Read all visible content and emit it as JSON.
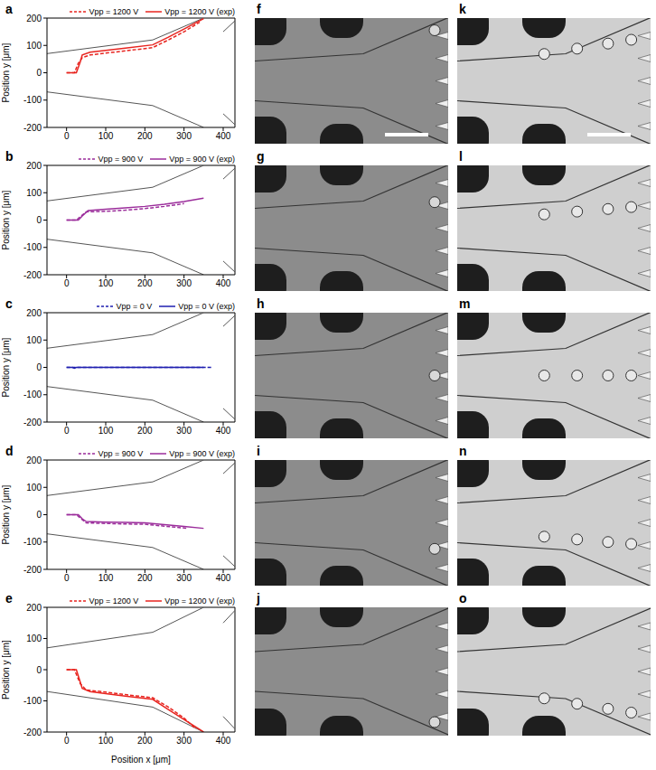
{
  "chart_data": [
    {
      "type": "line",
      "panel": "a",
      "y_label": "Position y [μm]",
      "xlim": [
        -50,
        430
      ],
      "xticks": [
        0,
        100,
        200,
        300,
        400
      ],
      "ylim": [
        -200,
        200
      ],
      "yticks": [
        -200,
        -100,
        0,
        100,
        200
      ],
      "legend": "top",
      "series": [
        {
          "name": "Vpp = 1200 V",
          "color": "#e8241f",
          "line_style": "dashed",
          "x": [
            0,
            20,
            30,
            40,
            60,
            100,
            150,
            220,
            260,
            300,
            340
          ],
          "values": [
            0,
            0,
            35,
            55,
            65,
            72,
            80,
            92,
            120,
            150,
            185
          ]
        },
        {
          "name": "Vpp = 1200 V (exp)",
          "color": "#e8241f",
          "line_style": "solid",
          "x": [
            0,
            25,
            35,
            40,
            60,
            100,
            150,
            220,
            260,
            300,
            350
          ],
          "values": [
            0,
            0,
            40,
            65,
            75,
            82,
            90,
            102,
            130,
            160,
            198
          ]
        }
      ],
      "channel_walls": [
        {
          "x": [
            -50,
            220,
            350
          ],
          "y": [
            70,
            120,
            200
          ]
        },
        {
          "x": [
            -50,
            220,
            350
          ],
          "y": [
            -70,
            -120,
            -200
          ]
        },
        {
          "x": [
            400,
            430
          ],
          "y": [
            150,
            190
          ]
        },
        {
          "x": [
            400,
            430
          ],
          "y": [
            -150,
            -190
          ]
        }
      ]
    },
    {
      "type": "line",
      "panel": "b",
      "y_label": "Position y [μm]",
      "xlim": [
        -50,
        430
      ],
      "xticks": [
        0,
        100,
        200,
        300,
        400
      ],
      "ylim": [
        -200,
        200
      ],
      "yticks": [
        -200,
        -100,
        0,
        100,
        200
      ],
      "legend": "top",
      "series": [
        {
          "name": "Vpp = 900 V",
          "color": "#9b2d9b",
          "line_style": "dashed",
          "x": [
            0,
            25,
            35,
            50,
            100,
            150,
            200,
            250,
            300
          ],
          "values": [
            0,
            0,
            12,
            30,
            32,
            36,
            42,
            50,
            60
          ]
        },
        {
          "name": "Vpp = 900 V (exp)",
          "color": "#9b2d9b",
          "line_style": "solid",
          "x": [
            0,
            30,
            40,
            55,
            100,
            150,
            200,
            250,
            300,
            350
          ],
          "values": [
            0,
            0,
            15,
            35,
            40,
            45,
            50,
            58,
            68,
            80
          ]
        }
      ],
      "channel_walls": [
        {
          "x": [
            -50,
            220,
            350
          ],
          "y": [
            70,
            120,
            200
          ]
        },
        {
          "x": [
            -50,
            220,
            350
          ],
          "y": [
            -70,
            -120,
            -200
          ]
        },
        {
          "x": [
            400,
            430
          ],
          "y": [
            150,
            190
          ]
        },
        {
          "x": [
            400,
            430
          ],
          "y": [
            -150,
            -190
          ]
        }
      ]
    },
    {
      "type": "line",
      "panel": "c",
      "y_label": "Position y [μm]",
      "xlim": [
        -50,
        430
      ],
      "xticks": [
        0,
        100,
        200,
        300,
        400
      ],
      "ylim": [
        -200,
        200
      ],
      "yticks": [
        -200,
        -100,
        0,
        100,
        200
      ],
      "legend": "top",
      "series": [
        {
          "name": "Vpp = 0 V",
          "color": "#1f1fb0",
          "line_style": "dashed",
          "x": [
            0,
            100,
            200,
            300,
            370
          ],
          "values": [
            0,
            0,
            0,
            0,
            0
          ]
        },
        {
          "name": "Vpp = 0 V (exp)",
          "color": "#1f1fb0",
          "line_style": "solid",
          "x": [
            0,
            15,
            20,
            25,
            50,
            100,
            200,
            300,
            350
          ],
          "values": [
            0,
            0,
            -3,
            0,
            0,
            0,
            0,
            0,
            0
          ]
        }
      ],
      "channel_walls": [
        {
          "x": [
            -50,
            220,
            350
          ],
          "y": [
            70,
            120,
            200
          ]
        },
        {
          "x": [
            -50,
            220,
            350
          ],
          "y": [
            -70,
            -120,
            -200
          ]
        },
        {
          "x": [
            400,
            430
          ],
          "y": [
            150,
            190
          ]
        },
        {
          "x": [
            400,
            430
          ],
          "y": [
            -150,
            -190
          ]
        }
      ]
    },
    {
      "type": "line",
      "panel": "d",
      "y_label": "Position y [μm]",
      "xlim": [
        -50,
        430
      ],
      "xticks": [
        0,
        100,
        200,
        300,
        400
      ],
      "ylim": [
        -200,
        200
      ],
      "yticks": [
        -200,
        -100,
        0,
        100,
        200
      ],
      "legend": "top",
      "series": [
        {
          "name": "Vpp = 900 V",
          "color": "#9b2d9b",
          "line_style": "dashed",
          "x": [
            0,
            25,
            35,
            50,
            100,
            150,
            200,
            250,
            310
          ],
          "values": [
            0,
            0,
            -12,
            -30,
            -32,
            -34,
            -35,
            -42,
            -50
          ]
        },
        {
          "name": "Vpp = 900 V (exp)",
          "color": "#9b2d9b",
          "line_style": "solid",
          "x": [
            0,
            30,
            40,
            50,
            100,
            150,
            200,
            250,
            300,
            350
          ],
          "values": [
            0,
            0,
            -15,
            -25,
            -27,
            -28,
            -30,
            -36,
            -43,
            -50
          ]
        }
      ],
      "channel_walls": [
        {
          "x": [
            -50,
            220,
            350
          ],
          "y": [
            70,
            120,
            200
          ]
        },
        {
          "x": [
            -50,
            220,
            350
          ],
          "y": [
            -70,
            -120,
            -200
          ]
        },
        {
          "x": [
            400,
            430
          ],
          "y": [
            150,
            190
          ]
        },
        {
          "x": [
            400,
            430
          ],
          "y": [
            -150,
            -190
          ]
        }
      ]
    },
    {
      "type": "line",
      "panel": "e",
      "x_label": "Position x [μm]",
      "y_label": "Position y [μm]",
      "xlim": [
        -50,
        430
      ],
      "xticks": [
        0,
        100,
        200,
        300,
        400
      ],
      "ylim": [
        -200,
        200
      ],
      "yticks": [
        -200,
        -100,
        0,
        100,
        200
      ],
      "legend": "top",
      "series": [
        {
          "name": "Vpp = 1200 V",
          "color": "#e8241f",
          "line_style": "dashed",
          "x": [
            0,
            20,
            35,
            50,
            100,
            150,
            220,
            260,
            300,
            330
          ],
          "values": [
            0,
            0,
            -45,
            -65,
            -72,
            -80,
            -90,
            -120,
            -155,
            -190
          ]
        },
        {
          "name": "Vpp = 1200 V (exp)",
          "color": "#e8241f",
          "line_style": "solid",
          "x": [
            0,
            25,
            40,
            60,
            100,
            150,
            220,
            260,
            300,
            350
          ],
          "values": [
            0,
            0,
            -60,
            -70,
            -77,
            -85,
            -95,
            -128,
            -160,
            -200
          ]
        }
      ],
      "channel_walls": [
        {
          "x": [
            -50,
            220,
            350
          ],
          "y": [
            70,
            120,
            200
          ]
        },
        {
          "x": [
            -50,
            220,
            350
          ],
          "y": [
            -70,
            -120,
            -200
          ]
        },
        {
          "x": [
            400,
            430
          ],
          "y": [
            150,
            190
          ]
        },
        {
          "x": [
            400,
            430
          ],
          "y": [
            -150,
            -190
          ]
        }
      ]
    }
  ],
  "images": [
    {
      "label": "f"
    },
    {
      "label": "g"
    },
    {
      "label": "h"
    },
    {
      "label": "i"
    },
    {
      "label": "j"
    },
    {
      "label": "k"
    },
    {
      "label": "l"
    },
    {
      "label": "m"
    },
    {
      "label": "n"
    },
    {
      "label": "o"
    }
  ]
}
